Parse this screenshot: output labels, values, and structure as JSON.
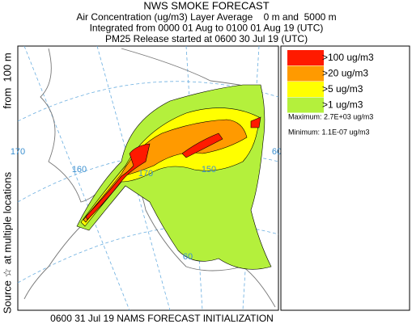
{
  "header": {
    "title": "NWS SMOKE FORECAST",
    "lines": [
      "Air Concentration (ug/m3) Layer Average    0 m and  5000 m",
      "Integrated from 0000 01 Aug to 0100 01 Aug 19 (UTC)",
      "PM25 Release started at 0600 30 Jul 19 (UTC)"
    ]
  },
  "side_labels": [
    "Source ☆",
    "at multiple locations",
    "from  100 m"
  ],
  "legend": {
    "items": [
      {
        "label": ">100 ug/m3",
        "color": "#ff1a00"
      },
      {
        "label": ">20 ug/m3",
        "color": "#ff9a00"
      },
      {
        "label": ">5 ug/m3",
        "color": "#ffff00"
      },
      {
        "label": ">1 ug/m3",
        "color": "#b4f03c"
      }
    ],
    "maximum": "Maximum: 2.7E+03 ug/m3",
    "minimum": "Minimum: 1.1E-07 ug/m3"
  },
  "map": {
    "grid_labels": [
      "170",
      "160",
      "170",
      "150",
      "60",
      "60"
    ]
  },
  "footer": "0600 31 Jul 19 NAMS FORECAST INITIALIZATION"
}
